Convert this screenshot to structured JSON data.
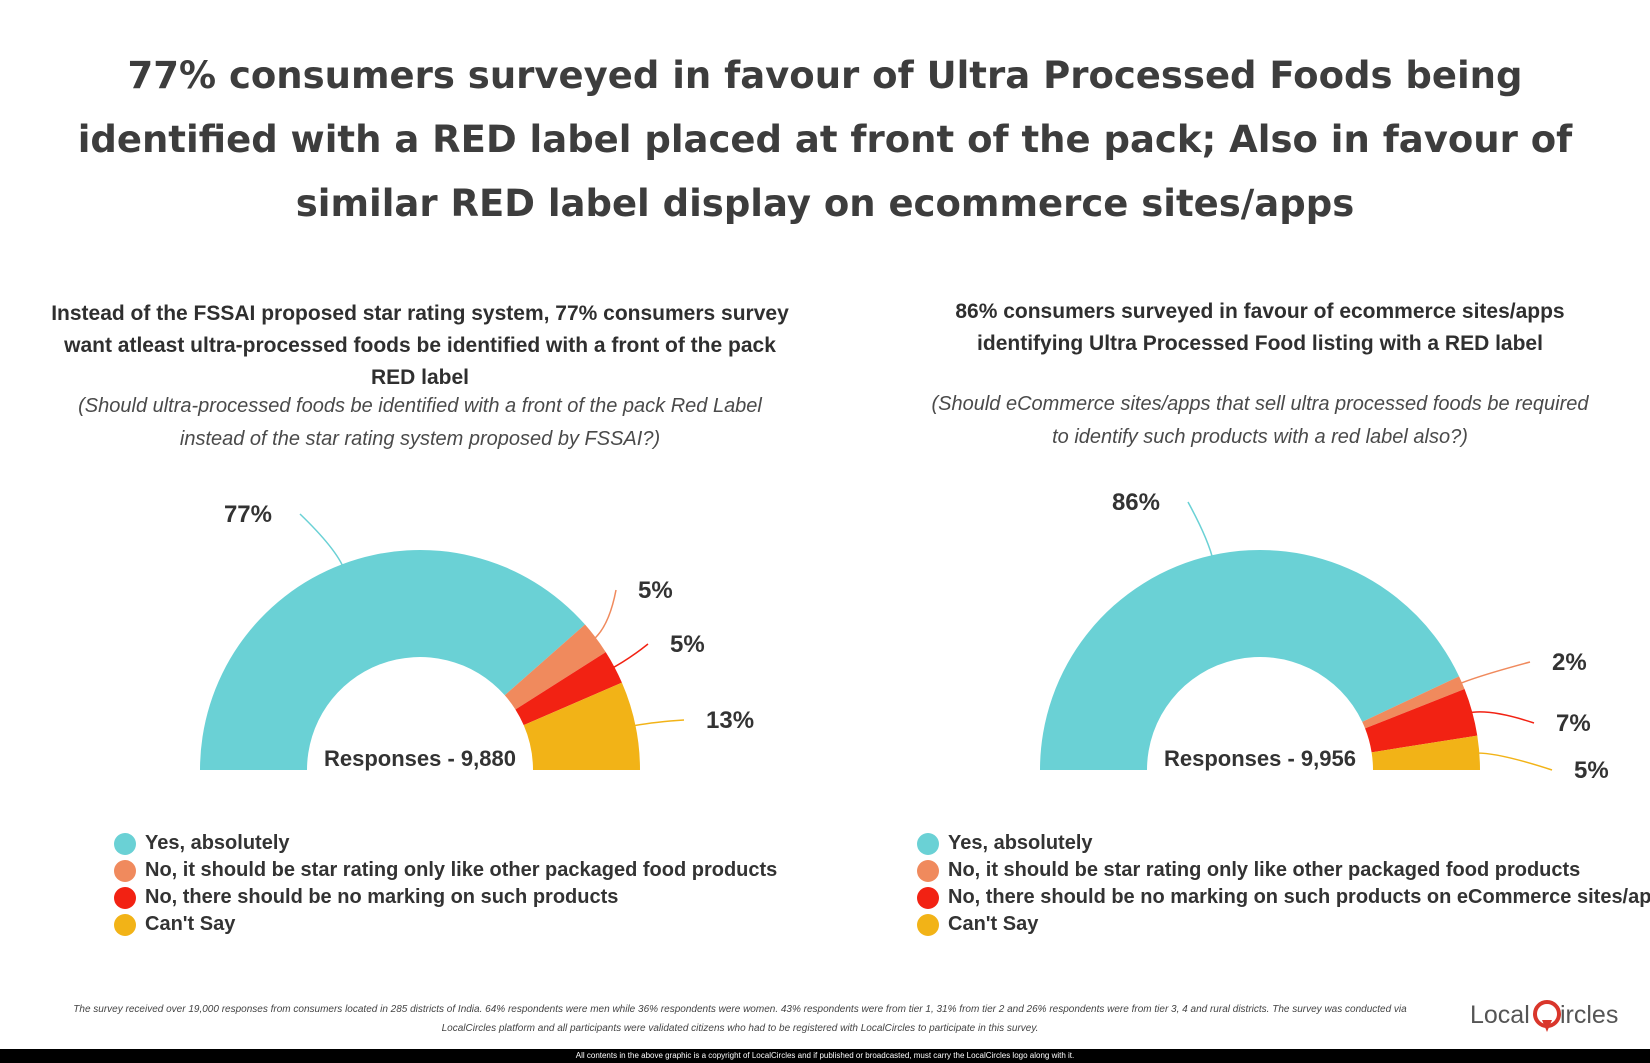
{
  "headline": "77% consumers surveyed in favour of Ultra Processed Foods being identified with a RED label placed at front of the pack; Also in favour of similar RED label display on ecommerce sites/apps",
  "colors": {
    "yes": "#6ad1d5",
    "no_star": "#f08a5d",
    "no_marking": "#f22213",
    "cant_say": "#f2b317"
  },
  "chart_data": [
    {
      "type": "pie",
      "title": "Instead of the FSSAI proposed star rating system, 77% consumers survey want atleast ultra-processed foods be identified with a front of the pack RED label",
      "subtitle": "(Should ultra-processed foods be identified with a front of the pack Red Label instead of the star rating system proposed by FSSAI?)",
      "responses": "Responses - 9,880",
      "categories": [
        "Yes, absolutely",
        "No, it should be star rating only like other packaged food products",
        "No, there should be no marking on such products",
        "Can't Say"
      ],
      "values": [
        77,
        5,
        5,
        13
      ],
      "value_labels": [
        "77%",
        "5%",
        "5%",
        "13%"
      ],
      "legend_position": "bottom-left"
    },
    {
      "type": "pie",
      "title": "86% consumers surveyed in favour of ecommerce sites/apps identifying Ultra Processed Food listing with a RED label",
      "subtitle": "(Should eCommerce sites/apps that sell ultra processed foods be required to identify such products with a red label also?)",
      "responses": "Responses - 9,956",
      "categories": [
        "Yes, absolutely",
        "No, it should be star rating only like other packaged food products",
        "No, there should be no marking on such products on eCommerce sites/apps",
        "Can't Say"
      ],
      "values": [
        86,
        2,
        7,
        5
      ],
      "value_labels": [
        "86%",
        "2%",
        "7%",
        "5%"
      ],
      "legend_position": "bottom-left"
    }
  ],
  "footnote": "The survey received over 19,000 responses from consumers located in 285 districts of India. 64% respondents were men while 36% respondents were women. 43% respondents were from tier 1, 31% from tier 2 and 26% respondents were from tier 3, 4 and rural districts. The survey was conducted via LocalCircles platform and all participants were validated citizens who had to be registered with LocalCircles to participate in this survey.",
  "logo": {
    "text_left": "Local",
    "text_right": "ircles"
  },
  "copyright": "All contents in the above graphic is a copyright of LocalCircles and if published or broadcasted, must carry the LocalCircles logo along with it."
}
